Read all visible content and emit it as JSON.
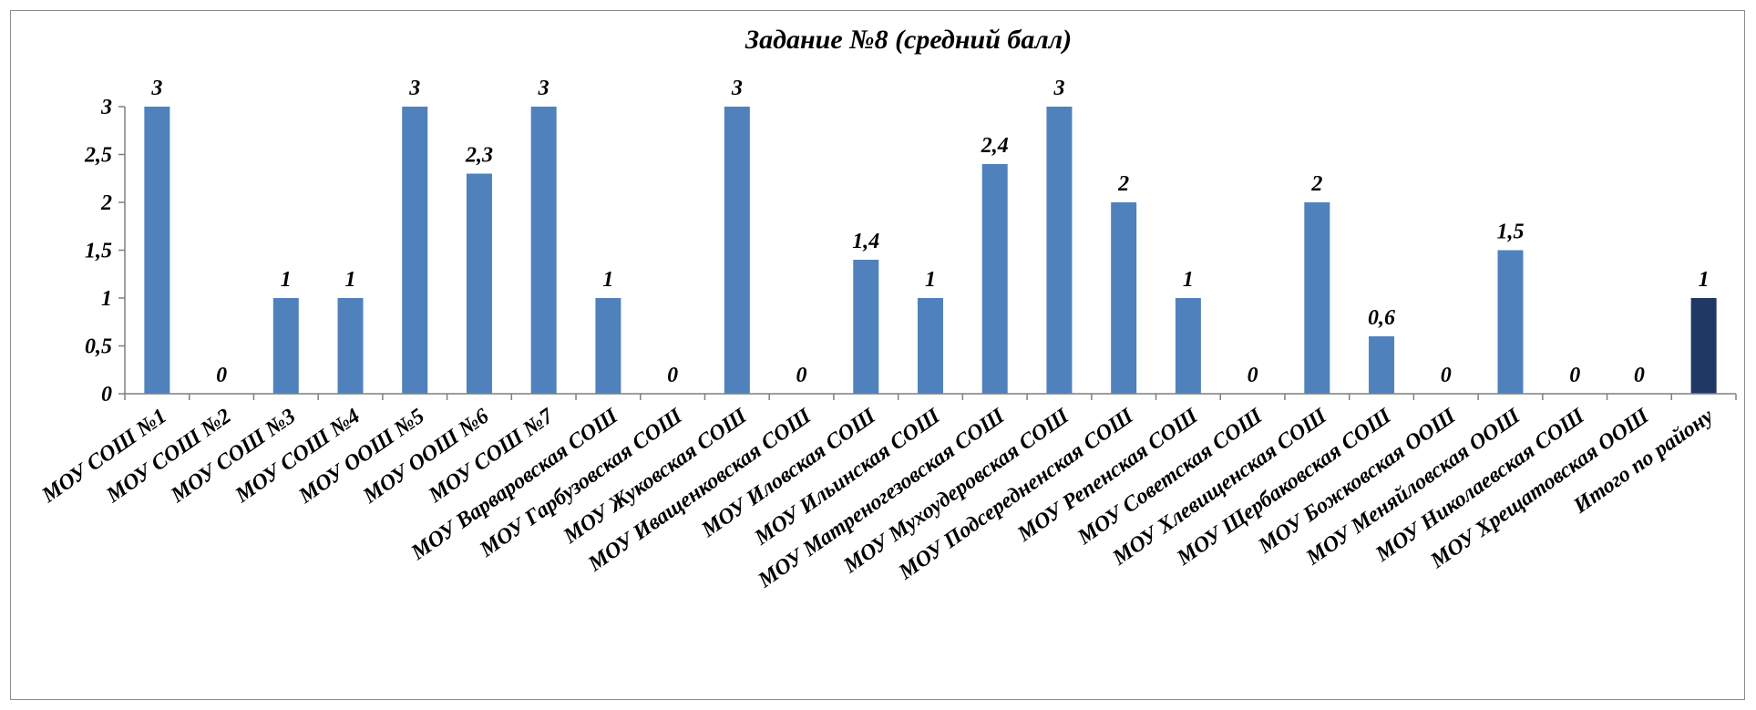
{
  "chart_data": {
    "type": "bar",
    "title": "Задание №8 (средний балл)",
    "xlabel": "",
    "ylabel": "",
    "ylim": [
      0,
      3
    ],
    "yticks": [
      "0",
      "0,5",
      "1",
      "1,5",
      "2",
      "2,5",
      "3"
    ],
    "grid": false,
    "legend": "none",
    "colors": {
      "bar": "#4f81bd",
      "highlight": "#1f3864",
      "axis": "#7f7f7f"
    },
    "categories": [
      "МОУ СОШ №1",
      "МОУ СОШ №2",
      "МОУ СОШ №3",
      "МОУ СОШ №4",
      "МОУ ООШ №5",
      "МОУ ООШ №6",
      "МОУ СОШ №7",
      "МОУ Варваровская  СОШ",
      "МОУ Гарбузовская  СОШ",
      "МОУ Жуковская  СОШ",
      "МОУ Иващенковская  СОШ",
      "МОУ Иловская  СОШ",
      "МОУ Ильинская  СОШ",
      "МОУ Матреногезовская СОШ",
      "МОУ Мухоудеровская  СОШ",
      "МОУ Подсередненская  СОШ",
      "МОУ Репенская  СОШ",
      "МОУ Советская  СОШ",
      "МОУ Хлевищенская  СОШ",
      "МОУ Щербаковская СОШ",
      "МОУ Божковская  ООШ",
      "МОУ Меняйловская ООШ",
      "МОУ Николаевская СОШ",
      "МОУ Хрещатовская ООШ",
      "Итого по району"
    ],
    "values": [
      3,
      0,
      1,
      1,
      3,
      2.3,
      3,
      1,
      0,
      3,
      0,
      1.4,
      1,
      2.4,
      3,
      2,
      1,
      0,
      2,
      0.6,
      0,
      1.5,
      0,
      0,
      1
    ],
    "data_labels": [
      "3",
      "0",
      "1",
      "1",
      "3",
      "2,3",
      "3",
      "1",
      "0",
      "3",
      "0",
      "1,4",
      "1",
      "2,4",
      "3",
      "2",
      "1",
      "0",
      "2",
      "0,6",
      "0",
      "1,5",
      "0",
      "0",
      "1"
    ],
    "highlight_index": 24
  }
}
